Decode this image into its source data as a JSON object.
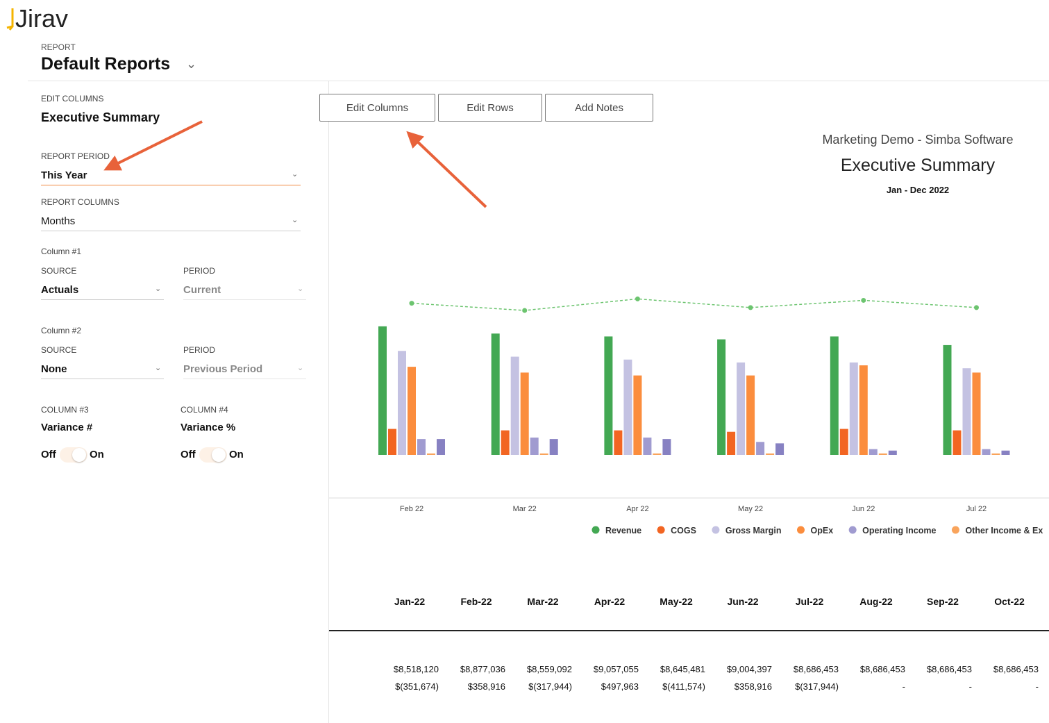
{
  "logo": "Jirav",
  "header": {
    "label": "REPORT",
    "title": "Default Reports"
  },
  "buttons": [
    "Edit Columns",
    "Edit Rows",
    "Add Notes"
  ],
  "panel": {
    "section_label": "EDIT COLUMNS",
    "section_title": "Executive Summary",
    "report_period": {
      "label": "REPORT PERIOD",
      "value": "This Year"
    },
    "report_columns": {
      "label": "REPORT COLUMNS",
      "value": "Months"
    },
    "column1": {
      "label": "Column #1",
      "source_label": "SOURCE",
      "source": "Actuals",
      "period_label": "PERIOD",
      "period": "Current"
    },
    "column2": {
      "label": "Column #2",
      "source_label": "SOURCE",
      "source": "None",
      "period_label": "PERIOD",
      "period": "Previous Period"
    },
    "column3": {
      "label": "COLUMN #3",
      "value": "Variance #",
      "off": "Off",
      "on": "On"
    },
    "column4": {
      "label": "COLUMN #4",
      "value": "Variance %",
      "off": "Off",
      "on": "On"
    }
  },
  "report": {
    "company": "Marketing Demo - Simba Software",
    "title": "Executive Summary",
    "period": "Jan - Dec 2022"
  },
  "chart_data": {
    "type": "bar",
    "categories": [
      "Feb 22",
      "Mar 22",
      "Apr 22",
      "May 22",
      "Jun 22",
      "Jul 22"
    ],
    "series": [
      {
        "name": "Revenue",
        "color": "#43a853",
        "values": [
          8.9,
          8.4,
          8.2,
          8.0,
          8.2,
          7.6
        ]
      },
      {
        "name": "COGS",
        "color": "#f26522",
        "values": [
          1.8,
          1.7,
          1.7,
          1.6,
          1.8,
          1.7
        ]
      },
      {
        "name": "Gross Margin",
        "color": "#c4c2e2",
        "values": [
          7.2,
          6.8,
          6.6,
          6.4,
          6.4,
          6.0
        ]
      },
      {
        "name": "OpEx",
        "color": "#fb8d3d",
        "values": [
          6.1,
          5.7,
          5.5,
          5.5,
          6.2,
          5.7
        ]
      },
      {
        "name": "Operating Income",
        "color": "#a09bd0",
        "values": [
          1.1,
          1.2,
          1.2,
          0.9,
          0.4,
          0.4
        ]
      },
      {
        "name": "Other Income & Ex",
        "color": "#f9a45c",
        "values": [
          0.1,
          0.1,
          0.1,
          0.1,
          0.1,
          0.1
        ]
      },
      {
        "color": "#8781c2",
        "values": [
          1.1,
          1.1,
          1.1,
          0.8,
          0.3,
          0.3
        ]
      },
      {
        "type": "line",
        "color": "#6cc46f",
        "values": [
          10.5,
          10.0,
          10.8,
          10.2,
          10.7,
          10.2
        ]
      }
    ]
  },
  "table": {
    "columns": [
      "Jan-22",
      "Feb-22",
      "Mar-22",
      "Apr-22",
      "May-22",
      "Jun-22",
      "Jul-22",
      "Aug-22",
      "Sep-22",
      "Oct-22"
    ],
    "rows": [
      [
        "$8,518,120",
        "$8,877,036",
        "$8,559,092",
        "$9,057,055",
        "$8,645,481",
        "$9,004,397",
        "$8,686,453",
        "$8,686,453",
        "$8,686,453",
        "$8,686,453"
      ],
      [
        "$(351,674)",
        "$358,916",
        "$(317,944)",
        "$497,963",
        "$(411,574)",
        "$358,916",
        "$(317,944)",
        "-",
        "-",
        "-"
      ]
    ]
  }
}
